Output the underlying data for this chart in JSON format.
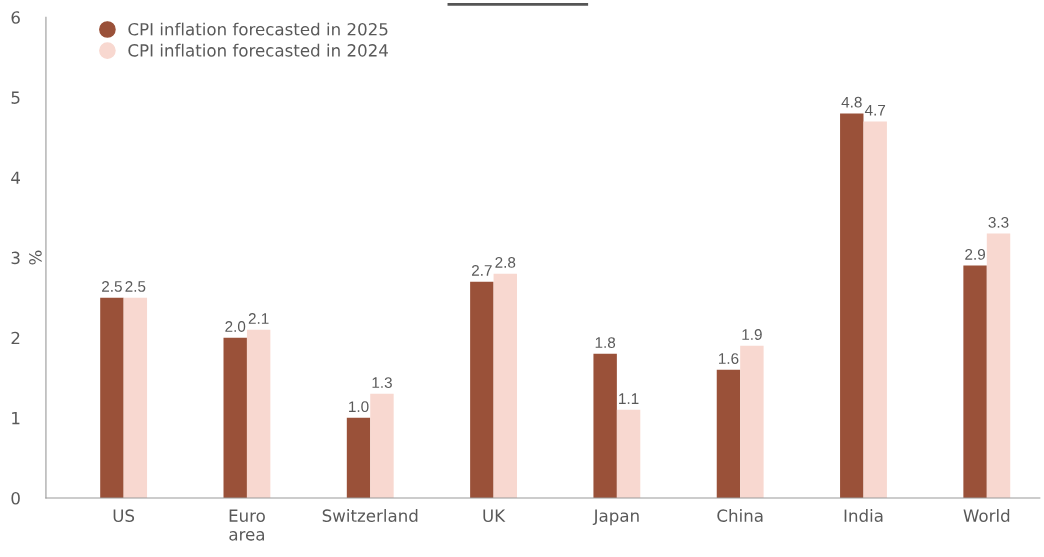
{
  "chart_data": {
    "type": "bar",
    "ylabel": "%",
    "categories": [
      "US",
      "Euro\narea",
      "Switzerland",
      "UK",
      "Japan",
      "China",
      "India",
      "World"
    ],
    "series": [
      {
        "name": "CPI inflation forecasted in 2025",
        "color": "#9a5139",
        "values": [
          2.5,
          2.0,
          1.0,
          2.7,
          1.8,
          1.6,
          4.8,
          2.9
        ],
        "value_labels": [
          "2.5",
          "2.0",
          "1.0",
          "2.7",
          "1.8",
          "1.6",
          "4.8",
          "2.9"
        ]
      },
      {
        "name": "CPI inflation forecasted in 2024",
        "color": "#f8d8d0",
        "values": [
          2.5,
          2.1,
          1.3,
          2.8,
          1.1,
          1.9,
          4.7,
          3.3
        ],
        "value_labels": [
          "2.5",
          "2.1",
          "1.3",
          "2.8",
          "1.1",
          "1.9",
          "4.7",
          "3.3"
        ]
      }
    ],
    "ylim": [
      0,
      6
    ],
    "yticks": [
      0,
      1,
      2,
      3,
      4,
      5,
      6
    ],
    "grid": false,
    "legend": "top left"
  }
}
